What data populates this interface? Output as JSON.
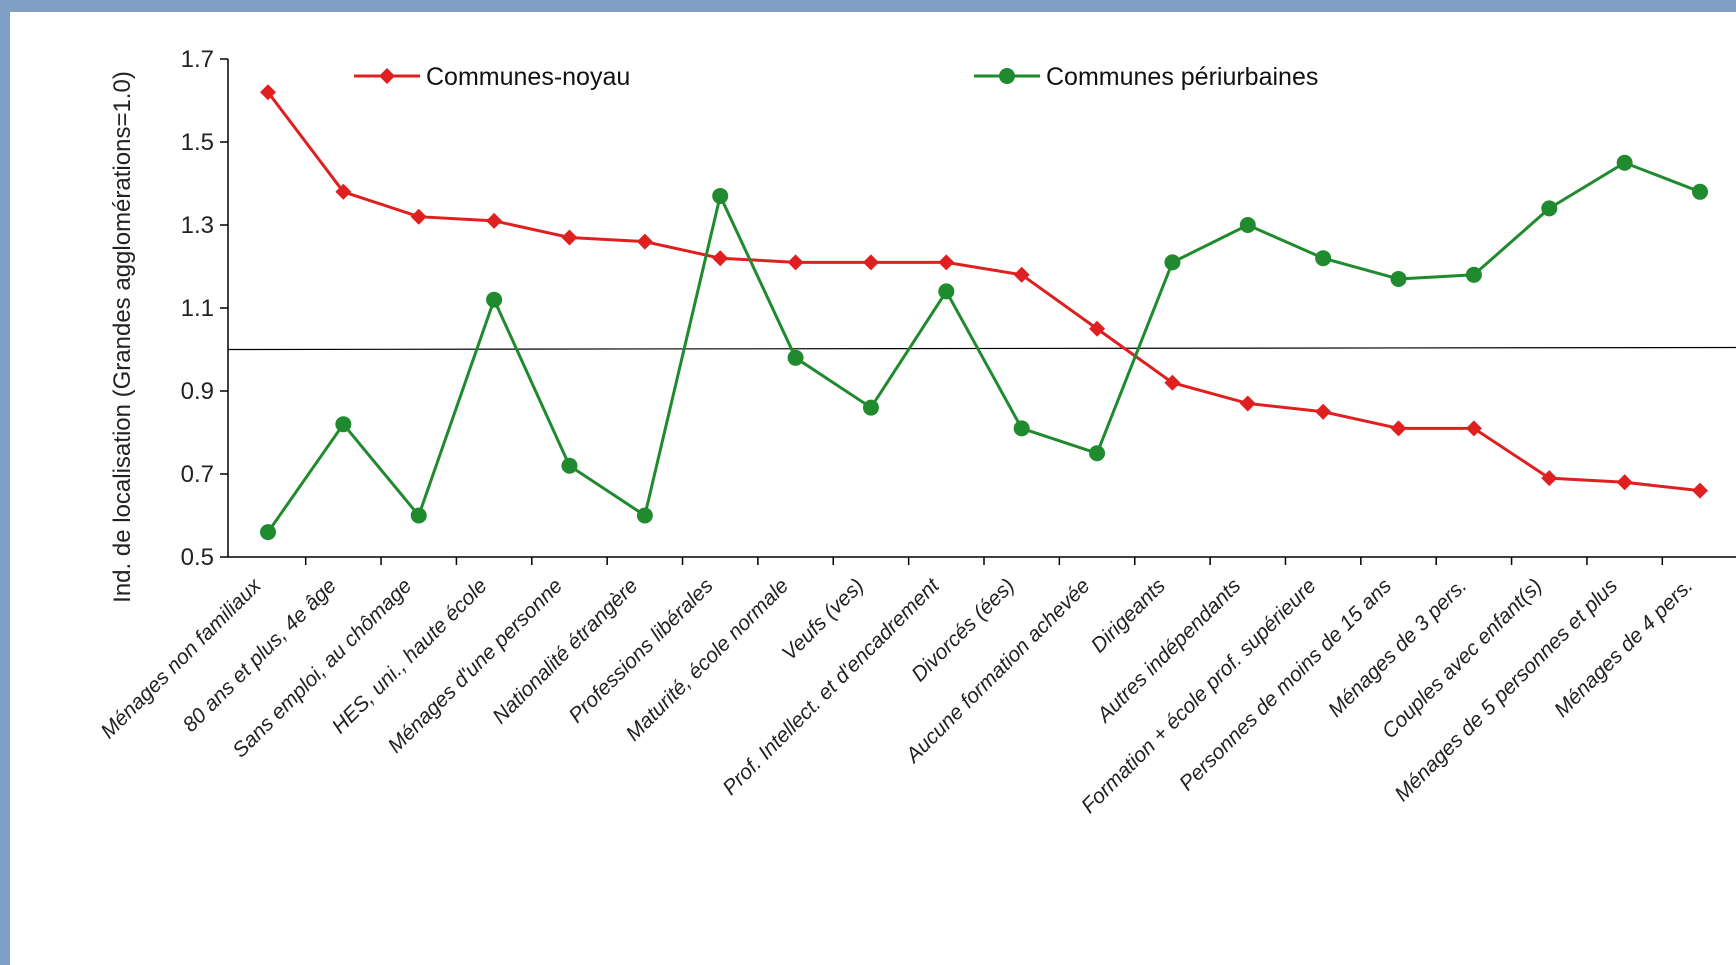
{
  "chart_data": {
    "type": "line",
    "ylabel": "Ind. de localisation (Grandes agglomérations=1.0)",
    "ylim": [
      0.5,
      1.7
    ],
    "yticks": [
      "0.5",
      "0.7",
      "0.9",
      "1.1",
      "1.3",
      "1.5",
      "1.7"
    ],
    "reference_line": 1.0,
    "legend_position": "top",
    "categories": [
      "Ménages non familiaux",
      "80 ans et plus, 4e âge",
      "Sans emploi, au chômage",
      "HES, uni., haute école",
      "Ménages d'une personne",
      "Nationalité étrangère",
      "Professions libérales",
      "Maturité, école normale",
      "Veufs (ves)",
      "Prof. Intellect. et d'encadrement",
      "Divorcés (ées)",
      "Aucune formation achevée",
      "Dirigeants",
      "Autres indépendants",
      "Formation + école prof. supérieure",
      "Personnes de moins de 15 ans",
      "Ménages de 3 pers.",
      "Couples avec enfant(s)",
      "Ménages de 5 personnes et plus",
      "Ménages de 4 pers."
    ],
    "series": [
      {
        "name": "Communes-noyau",
        "color": "#e02020",
        "marker": "diamond",
        "values": [
          1.62,
          1.38,
          1.32,
          1.31,
          1.27,
          1.26,
          1.22,
          1.21,
          1.21,
          1.21,
          1.18,
          1.05,
          0.92,
          0.87,
          0.85,
          0.81,
          0.81,
          0.69,
          0.68,
          0.66
        ]
      },
      {
        "name": "Communes périurbaines",
        "color": "#1f8a2e",
        "marker": "circle",
        "values": [
          0.56,
          0.82,
          0.6,
          1.12,
          0.72,
          0.6,
          1.37,
          0.98,
          0.86,
          1.14,
          0.81,
          0.75,
          1.21,
          1.3,
          1.22,
          1.17,
          1.18,
          1.34,
          1.45,
          1.38
        ]
      }
    ]
  }
}
